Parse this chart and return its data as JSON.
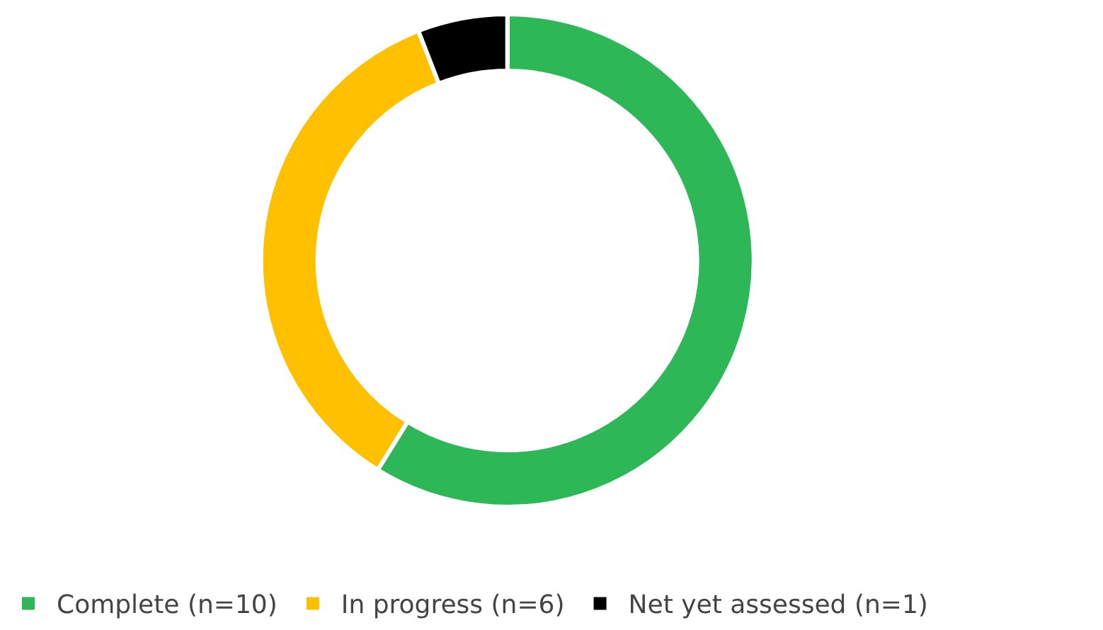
{
  "chart_data": {
    "type": "donut",
    "categories": [
      "Complete (n=10)",
      "In progress (n=6)",
      "Net yet assessed (n=1)"
    ],
    "values": [
      10,
      6,
      1
    ],
    "colors": [
      "#2db757",
      "#ffc000",
      "#000000"
    ],
    "legend": "bottom"
  }
}
